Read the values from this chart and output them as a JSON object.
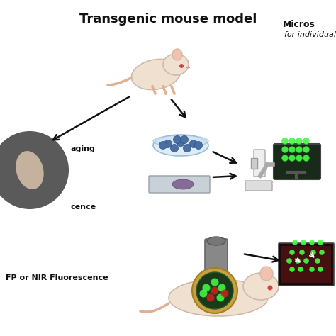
{
  "title": "Transgenic mouse model",
  "label_microscopy": "Micros",
  "label_microscopy2": "for individual",
  "label_left_top": "aging",
  "label_left_mid": "cence",
  "label_left_bot": "FP or NIR Fluorescence",
  "bg_color": "#ffffff",
  "dark_circle_color": "#5a5a5a",
  "petri_color": "#b8d8e8",
  "petri_cells_color": "#4a6fa5",
  "slide_bg": "#c8d0d8",
  "slide_blob": "#7a5a8a",
  "microscope_color": "#cccccc",
  "monitor_bg": "#1a2a1a",
  "monitor_cells": "#44ff44",
  "arrow_color": "#111111",
  "fluor_img_bg": "#1a0a0a",
  "fluor_green": "#44ff44",
  "fluor_red": "#cc2222",
  "lens_color": "#888888",
  "mouse_color": "#f0e0d0",
  "window_outer": "#c8a040",
  "window_inner": "#1a3a1a"
}
